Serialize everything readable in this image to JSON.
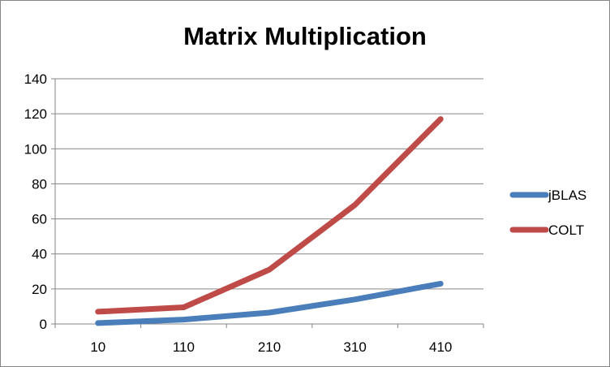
{
  "chart_data": {
    "type": "line",
    "title": "Matrix Multiplication",
    "xlabel": "",
    "ylabel": "",
    "categories": [
      "10",
      "110",
      "210",
      "310",
      "410"
    ],
    "ylim": [
      0,
      140
    ],
    "yticks": [
      0,
      20,
      40,
      60,
      80,
      100,
      120,
      140
    ],
    "grid": true,
    "legend_position": "right",
    "series": [
      {
        "name": "jBLAS",
        "color": "#4a7ebb",
        "values": [
          0.5,
          2.5,
          6.5,
          14,
          23
        ]
      },
      {
        "name": "COLT",
        "color": "#be4b48",
        "values": [
          7,
          9.5,
          31,
          68,
          117
        ]
      }
    ]
  }
}
